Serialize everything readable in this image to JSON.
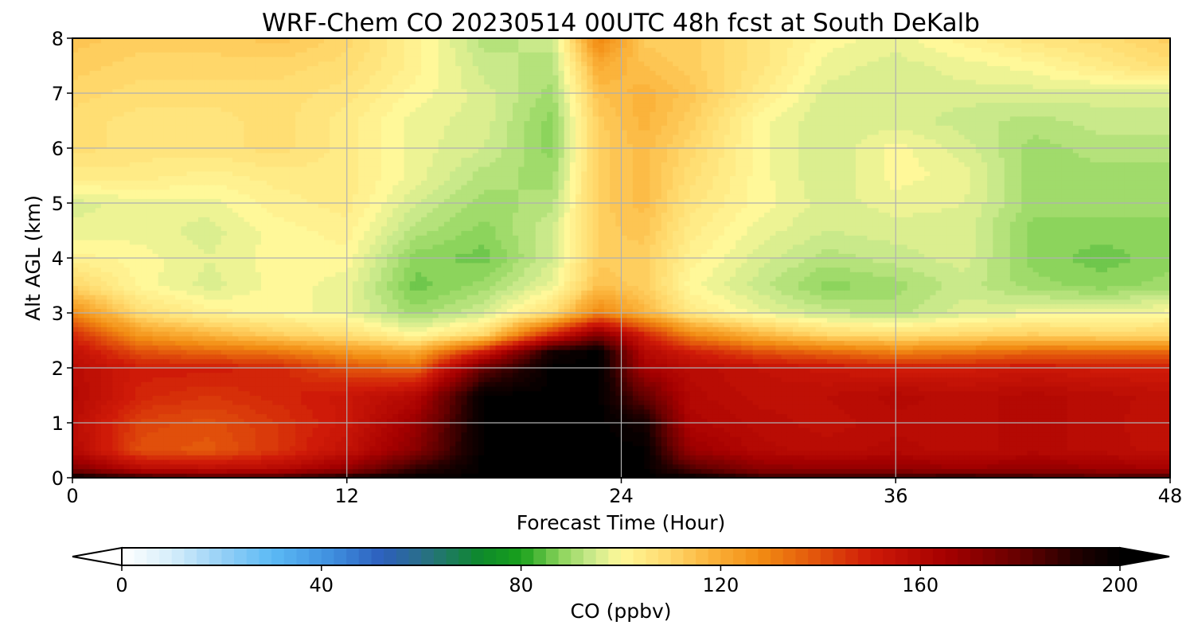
{
  "chart_data": {
    "type": "heatmap",
    "title": "WRF-Chem CO  20230514 00UTC 48h fcst at South DeKalb",
    "xlabel": "Forecast Time (Hour)",
    "ylabel": "Alt AGL (km)",
    "xlim": [
      0,
      48
    ],
    "ylim": [
      0,
      8
    ],
    "xticks": [
      0,
      12,
      24,
      36,
      48
    ],
    "yticks": [
      0,
      1,
      2,
      3,
      4,
      5,
      6,
      7,
      8
    ],
    "grid": true,
    "x": [
      0,
      3,
      6,
      9,
      12,
      15,
      18,
      21,
      23,
      25,
      27,
      30,
      33,
      36,
      39,
      42,
      45,
      48
    ],
    "y": [
      0,
      0.15,
      0.5,
      1,
      1.5,
      2,
      2.3,
      2.6,
      3,
      3.5,
      4,
      4.5,
      5,
      5.5,
      6,
      6.5,
      7,
      7.5,
      8
    ],
    "z": [
      [
        200,
        190,
        185,
        188,
        195,
        200,
        200,
        200,
        200,
        200,
        200,
        190,
        188,
        190,
        192,
        188,
        185,
        190
      ],
      [
        175,
        160,
        158,
        160,
        170,
        190,
        200,
        200,
        200,
        200,
        185,
        172,
        170,
        170,
        168,
        170,
        168,
        165
      ],
      [
        160,
        140,
        138,
        145,
        155,
        172,
        200,
        200,
        200,
        200,
        168,
        160,
        158,
        160,
        158,
        160,
        158,
        156
      ],
      [
        158,
        142,
        140,
        145,
        152,
        168,
        200,
        200,
        200,
        195,
        162,
        158,
        156,
        158,
        158,
        160,
        158,
        155
      ],
      [
        160,
        148,
        145,
        148,
        152,
        160,
        200,
        200,
        200,
        180,
        160,
        156,
        157,
        160,
        158,
        160,
        158,
        156
      ],
      [
        158,
        150,
        150,
        148,
        140,
        135,
        180,
        200,
        200,
        165,
        158,
        155,
        152,
        150,
        150,
        152,
        150,
        150
      ],
      [
        155,
        140,
        135,
        132,
        125,
        120,
        150,
        195,
        200,
        160,
        150,
        140,
        135,
        130,
        132,
        135,
        135,
        135
      ],
      [
        148,
        125,
        118,
        112,
        108,
        100,
        110,
        150,
        175,
        150,
        130,
        118,
        110,
        108,
        110,
        112,
        110,
        110
      ],
      [
        128,
        108,
        102,
        100,
        98,
        90,
        95,
        108,
        130,
        118,
        105,
        98,
        94,
        92,
        96,
        98,
        98,
        100
      ],
      [
        110,
        100,
        96,
        100,
        98,
        86,
        90,
        98,
        115,
        112,
        100,
        94,
        88,
        90,
        94,
        90,
        88,
        90
      ],
      [
        102,
        100,
        97,
        100,
        100,
        88,
        86,
        95,
        112,
        112,
        102,
        96,
        92,
        94,
        96,
        88,
        86,
        88
      ],
      [
        98,
        98,
        96,
        100,
        102,
        92,
        88,
        95,
        112,
        114,
        104,
        98,
        95,
        96,
        96,
        88,
        88,
        88
      ],
      [
        96,
        98,
        98,
        102,
        104,
        95,
        90,
        92,
        112,
        116,
        106,
        100,
        96,
        98,
        97,
        90,
        90,
        90
      ],
      [
        104,
        104,
        102,
        104,
        104,
        98,
        92,
        90,
        112,
        116,
        108,
        100,
        95,
        100,
        98,
        90,
        90,
        90
      ],
      [
        108,
        106,
        106,
        108,
        104,
        98,
        95,
        88,
        112,
        116,
        110,
        100,
        95,
        100,
        96,
        90,
        92,
        92
      ],
      [
        108,
        106,
        106,
        108,
        104,
        98,
        96,
        88,
        112,
        118,
        112,
        100,
        95,
        96,
        94,
        92,
        94,
        94
      ],
      [
        110,
        108,
        108,
        108,
        106,
        100,
        96,
        90,
        115,
        118,
        114,
        104,
        96,
        96,
        96,
        96,
        96,
        96
      ],
      [
        112,
        110,
        110,
        110,
        108,
        102,
        94,
        92,
        120,
        115,
        112,
        106,
        98,
        96,
        98,
        100,
        104,
        108
      ],
      [
        114,
        112,
        112,
        114,
        110,
        102,
        92,
        94,
        130,
        112,
        112,
        106,
        100,
        98,
        102,
        106,
        108,
        112
      ]
    ],
    "colorbar": {
      "label": "CO  (ppbv)",
      "min": 0,
      "max": 200,
      "ticks": [
        0,
        40,
        80,
        120,
        160,
        200
      ],
      "extend": "both",
      "stops": [
        {
          "v": 0,
          "c": "#ffffff"
        },
        {
          "v": 10,
          "c": "#d6eefa"
        },
        {
          "v": 20,
          "c": "#96d0f6"
        },
        {
          "v": 30,
          "c": "#5cbaf5"
        },
        {
          "v": 42,
          "c": "#3f8fdf"
        },
        {
          "v": 52,
          "c": "#2d5fbd"
        },
        {
          "v": 60,
          "c": "#2a6e8a"
        },
        {
          "v": 72,
          "c": "#0d8a2a"
        },
        {
          "v": 80,
          "c": "#19a11c"
        },
        {
          "v": 88,
          "c": "#8cd45c"
        },
        {
          "v": 94,
          "c": "#c9e98a"
        },
        {
          "v": 100,
          "c": "#fff899"
        },
        {
          "v": 110,
          "c": "#ffd76a"
        },
        {
          "v": 118,
          "c": "#fbb33b"
        },
        {
          "v": 128,
          "c": "#f28c13"
        },
        {
          "v": 138,
          "c": "#e45a0c"
        },
        {
          "v": 150,
          "c": "#cf1a08"
        },
        {
          "v": 165,
          "c": "#a60000"
        },
        {
          "v": 180,
          "c": "#650000"
        },
        {
          "v": 192,
          "c": "#1e0000"
        },
        {
          "v": 200,
          "c": "#000000"
        }
      ]
    }
  }
}
